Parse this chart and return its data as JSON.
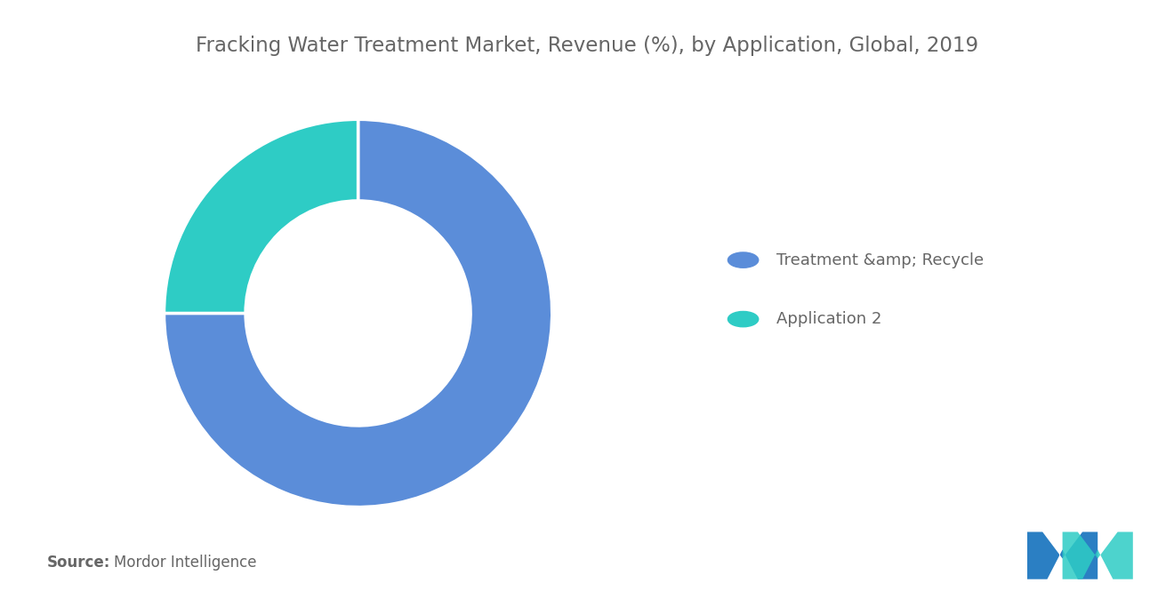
{
  "title": "Fracking Water Treatment Market, Revenue (%), by Application, Global, 2019",
  "slices": [
    75,
    25
  ],
  "colors": [
    "#5B8DD9",
    "#2ECCC5"
  ],
  "legend_labels": [
    "Treatment &amp; Recycle",
    "Application 2"
  ],
  "source_bold": "Source:",
  "source_text": "Mordor Intelligence",
  "background_color": "#FFFFFF",
  "title_color": "#666666",
  "title_fontsize": 16.5,
  "legend_fontsize": 13,
  "source_fontsize": 12,
  "donut_width": 0.42,
  "startangle": 90,
  "logo_color1": "#2B7FC3",
  "logo_color2": "#2ECCC5"
}
